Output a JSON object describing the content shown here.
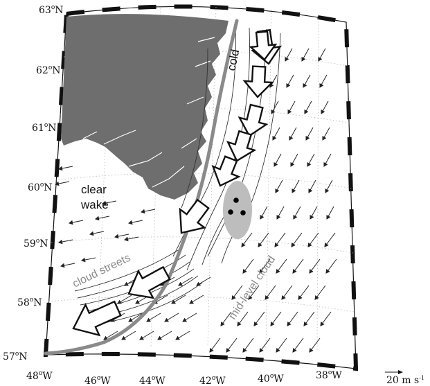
{
  "latitudes": [
    {
      "deg": "63",
      "hem": "N"
    },
    {
      "deg": "62",
      "hem": "N"
    },
    {
      "deg": "61",
      "hem": "N"
    },
    {
      "deg": "60",
      "hem": "N"
    },
    {
      "deg": "59",
      "hem": "N"
    },
    {
      "deg": "58",
      "hem": "N"
    },
    {
      "deg": "57",
      "hem": "N"
    }
  ],
  "longitudes": [
    {
      "deg": "48",
      "hem": "W"
    },
    {
      "deg": "46",
      "hem": "W"
    },
    {
      "deg": "44",
      "hem": "W"
    },
    {
      "deg": "42",
      "hem": "W"
    },
    {
      "deg": "40",
      "hem": "W"
    },
    {
      "deg": "38",
      "hem": "W"
    }
  ],
  "degree_symbol": "o",
  "labels": {
    "cold": "cold",
    "clear": "clear",
    "wake": "wake",
    "cloud_streets": "cloud streets",
    "mid_level_cloud": "mid-level cloud"
  },
  "scale": {
    "value": "20 m s",
    "exponent": "-1"
  },
  "colors": {
    "land": "#6e6e6e",
    "wind_axis": "#8a8a8a",
    "ellipse": "#bdbdbd"
  }
}
